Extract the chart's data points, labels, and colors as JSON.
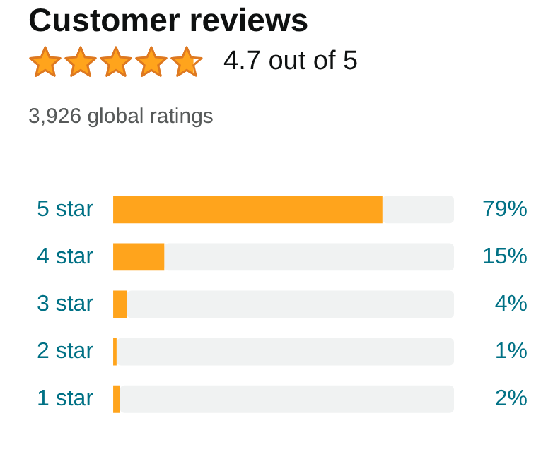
{
  "chart_data": {
    "type": "bar",
    "orientation": "horizontal",
    "stacked": true,
    "title": "Customer reviews",
    "subtitle": "4.7 out of 5",
    "annotations": [
      "3,926 global ratings"
    ],
    "categories": [
      "5 star",
      "4 star",
      "3 star",
      "2 star",
      "1 star"
    ],
    "series": [
      {
        "color": "#ffa41c",
        "values": [
          79,
          15,
          4,
          1,
          2
        ],
        "value_labels": [
          "79%",
          "15%",
          "4%",
          "1%",
          "2%"
        ]
      },
      {
        "color": "#f0f2f2",
        "values": [
          21,
          85,
          96,
          99,
          98
        ]
      }
    ],
    "xlim": [
      0,
      100
    ],
    "tick_labels": "y",
    "grid": false,
    "legend": false
  }
}
